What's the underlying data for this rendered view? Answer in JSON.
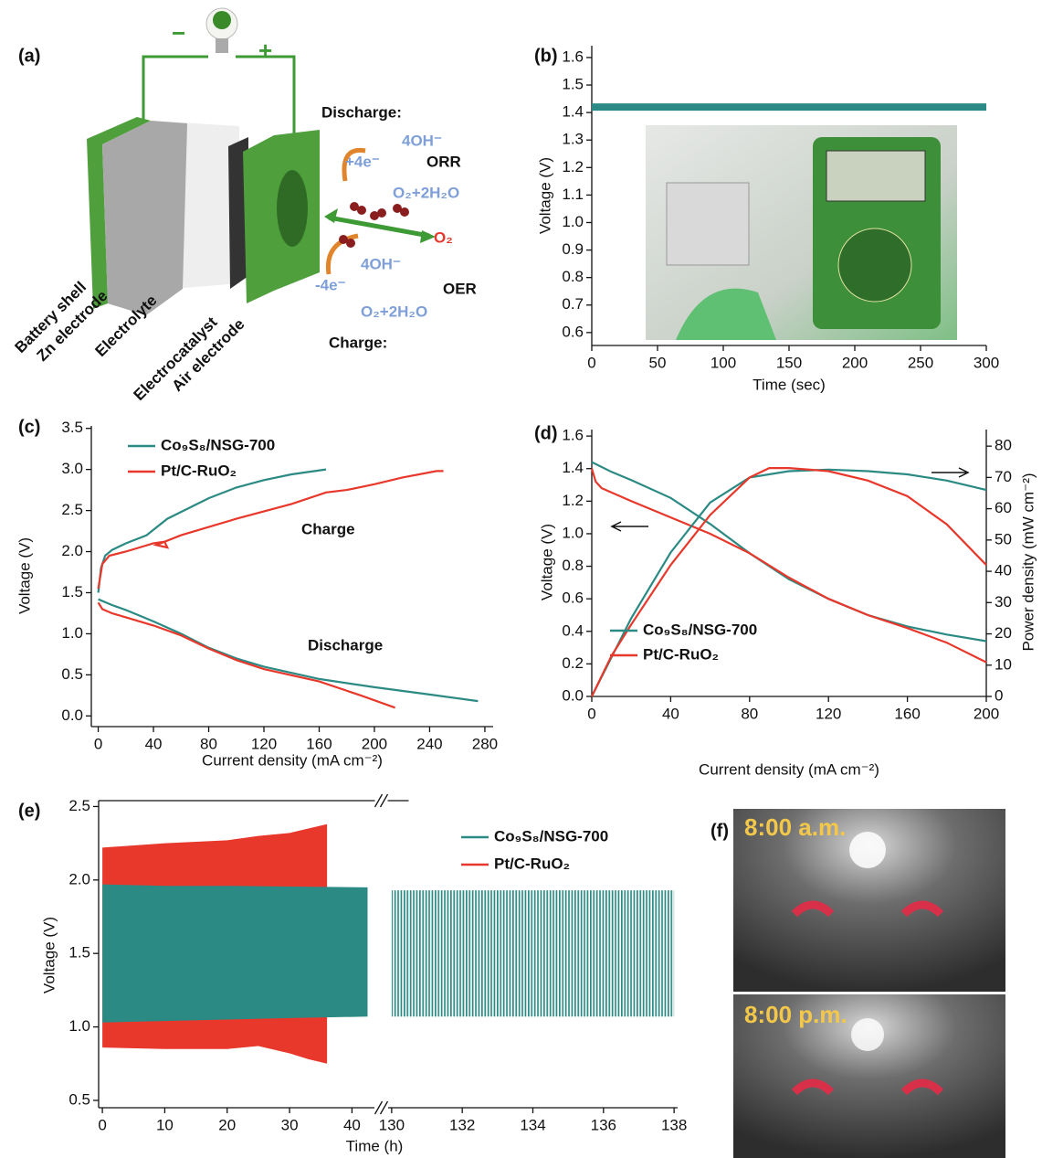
{
  "diagram": {
    "label": "(a)",
    "minus": "−",
    "plus": "+",
    "discharge": "Discharge:",
    "orr_reactant": "4OH⁻",
    "orr_electrons": "+4e⁻",
    "orr": "ORR",
    "orr_product": "O₂+2H₂O",
    "oxygen": "O₂",
    "oer_reactant": "4OH⁻",
    "oer_electrons": "-4e⁻",
    "oer": "OER",
    "oer_product": "O₂+2H₂O",
    "charge": "Charge:",
    "parts": [
      "Battery shell",
      "Zn electrode",
      "Electrolyte",
      "Electrocatalyst",
      "Air electrode"
    ]
  },
  "chart_data": [
    {
      "label": "(b)",
      "type": "line",
      "xlabel": "Time (sec)",
      "ylabel": "Voltage (V)",
      "x": [
        0,
        300
      ],
      "series": [
        {
          "color": "#2b8a83",
          "values": [
            1.42,
            1.42
          ]
        }
      ],
      "xlim": [
        0,
        300
      ],
      "xticks": [
        0,
        50,
        100,
        150,
        200,
        250,
        300
      ],
      "ylim": [
        0.553,
        1.643
      ],
      "yticks": [
        0.6,
        0.7,
        0.8,
        0.9,
        {
          "value": 1,
          "label": "1.0"
        },
        1.1,
        1.2,
        1.3,
        1.4,
        1.5,
        1.6
      ]
    },
    {
      "label": "(c)",
      "type": "line",
      "xlabel": "Current density (mA cm⁻²)",
      "ylabel": "Voltage (V)",
      "annotations": [
        "Charge",
        "Discharge"
      ],
      "series": [
        {
          "name": "Co₉S₈/NSG-700",
          "color": "#2b8a83",
          "x": [
            0,
            10,
            20,
            40,
            60,
            80,
            100,
            120,
            160,
            200,
            240,
            275,
            null,
            0,
            2,
            5,
            10,
            20,
            35,
            50,
            80,
            100,
            120,
            140,
            165
          ],
          "values": [
            1.42,
            1.35,
            1.29,
            1.15,
            1.0,
            0.83,
            0.7,
            0.6,
            0.45,
            0.35,
            0.26,
            0.18,
            null,
            1.5,
            1.8,
            1.95,
            2.02,
            2.1,
            2.2,
            2.4,
            2.65,
            2.78,
            2.87,
            2.94,
            3.0
          ]
        },
        {
          "name": "Pt/C-RuO₂",
          "color": "#e8372b",
          "x": [
            0,
            3,
            10,
            20,
            40,
            60,
            80,
            100,
            120,
            160,
            190,
            215,
            null,
            0,
            3,
            8,
            20,
            40,
            48,
            50,
            42,
            60,
            100,
            140,
            165,
            180,
            200,
            220,
            245,
            250
          ],
          "values": [
            1.38,
            1.3,
            1.25,
            1.2,
            1.1,
            0.98,
            0.82,
            0.68,
            0.57,
            0.42,
            0.25,
            0.1,
            null,
            1.55,
            1.85,
            1.95,
            2.0,
            2.1,
            2.12,
            2.05,
            2.08,
            2.2,
            2.4,
            2.58,
            2.72,
            2.75,
            2.82,
            2.9,
            2.98,
            2.98
          ]
        }
      ],
      "xlim": [
        -5,
        286
      ],
      "xticks": [
        0,
        40,
        80,
        120,
        160,
        200,
        240,
        280
      ],
      "ylim": [
        -0.13,
        3.53
      ],
      "yticks": [
        {
          "value": 0,
          "label": "0.0"
        },
        0.5,
        {
          "value": 1,
          "label": "1.0"
        },
        1.5,
        {
          "value": 2,
          "label": "2.0"
        },
        2.5,
        {
          "value": 3,
          "label": "3.0"
        },
        3.5
      ]
    },
    {
      "label": "(d)",
      "type": "line",
      "xlabel": "Current density (mA cm⁻²)",
      "ylabel": "Voltage (V)",
      "y2label": "Power density (mW cm⁻²)",
      "series": [
        {
          "name": "Co₉S₈/NSG-700",
          "color": "#2b8a83",
          "x": [
            0,
            10,
            20,
            40,
            60,
            80,
            100,
            120,
            140,
            160,
            180,
            200
          ],
          "values": [
            1.44,
            1.38,
            1.33,
            1.22,
            1.06,
            0.88,
            0.72,
            0.6,
            0.5,
            0.43,
            0.38,
            0.34
          ]
        },
        {
          "name": "Pt/C-RuO₂",
          "color": "#e8372b",
          "x": [
            0,
            2,
            5,
            20,
            40,
            60,
            80,
            100,
            120,
            140,
            160,
            180,
            200
          ],
          "values": [
            1.4,
            1.32,
            1.28,
            1.2,
            1.1,
            1.0,
            0.88,
            0.73,
            0.6,
            0.5,
            0.42,
            0.33,
            0.21
          ]
        },
        {
          "color": "#2b8a83",
          "axis": "y2",
          "x": [
            0,
            20,
            40,
            60,
            80,
            100,
            120,
            140,
            160,
            180,
            200
          ],
          "values": [
            0,
            25,
            46,
            62,
            70,
            72,
            72.5,
            72,
            71,
            69,
            66
          ]
        },
        {
          "color": "#e8372b",
          "axis": "y2",
          "x": [
            0,
            10,
            20,
            40,
            60,
            80,
            90,
            100,
            120,
            140,
            160,
            180,
            200
          ],
          "values": [
            0,
            13,
            23,
            42,
            58,
            70,
            73,
            73,
            72,
            69,
            64,
            55,
            42
          ]
        }
      ],
      "xlim": [
        0,
        200
      ],
      "xticks": [
        0,
        40,
        80,
        120,
        160,
        200
      ],
      "ylim": [
        0,
        1.64
      ],
      "yticks": [
        {
          "value": 0,
          "label": "0.0"
        },
        0.2,
        0.4,
        0.6,
        0.8,
        {
          "value": 1,
          "label": "1.0"
        },
        1.2,
        1.4,
        1.6
      ],
      "y2lim": [
        0,
        85.3
      ],
      "y2ticks": [
        0,
        10,
        20,
        30,
        40,
        50,
        60,
        70,
        80
      ]
    },
    {
      "label": "(e)",
      "type": "area",
      "xlabel": "Time (h)",
      "ylabel": "Voltage (V)",
      "series": [
        {
          "name": "Co₉S₈/NSG-700",
          "color": "#2b8a83",
          "x": [
            0,
            10,
            20,
            30,
            42.5,
            null,
            130,
            138
          ],
          "charge": [
            1.97,
            1.96,
            1.96,
            1.955,
            1.95,
            null,
            1.93,
            1.93
          ],
          "discharge": [
            1.03,
            1.04,
            1.05,
            1.06,
            1.07,
            null,
            1.07,
            1.07
          ]
        },
        {
          "name": "Pt/C-RuO₂",
          "color": "#e8372b",
          "x": [
            0,
            10,
            20,
            25,
            30,
            33,
            36
          ],
          "charge": [
            2.22,
            2.25,
            2.27,
            2.3,
            2.32,
            2.35,
            2.38
          ],
          "discharge": [
            0.86,
            0.85,
            0.85,
            0.87,
            0.82,
            0.78,
            0.75
          ]
        }
      ],
      "x_segments": [
        {
          "xlim": [
            -0.6,
            43.6
          ],
          "xticks": [
            0,
            10,
            20,
            30,
            40
          ]
        },
        {
          "xlim": [
            129.9,
            138.1
          ],
          "xticks": [
            130,
            132,
            134,
            136,
            138
          ]
        }
      ],
      "ylim": [
        0.45,
        2.54
      ],
      "yticks": [
        0.5,
        {
          "value": 1,
          "label": "1.0"
        },
        1.5,
        {
          "value": 2,
          "label": "2.0"
        },
        2.5
      ]
    }
  ],
  "photos": {
    "label": "(f)",
    "captions": [
      "8:00 a.m.",
      "8:00 p.m."
    ]
  }
}
